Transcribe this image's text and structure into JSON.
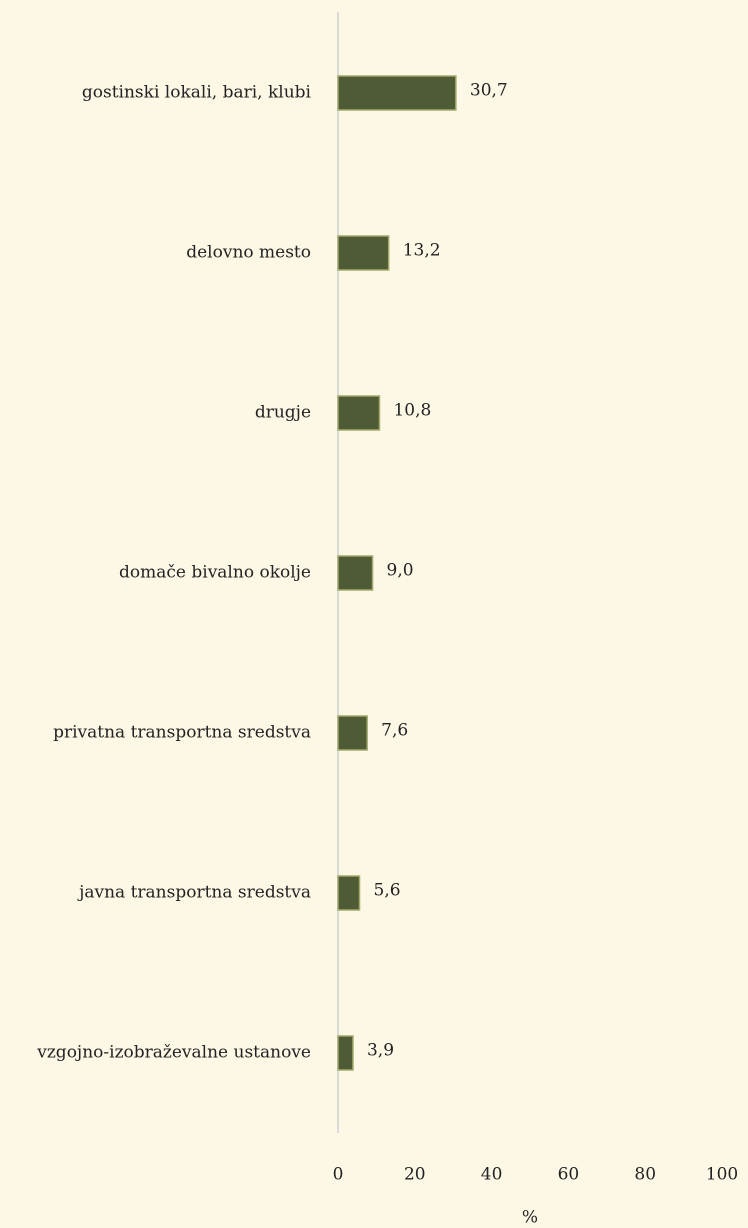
{
  "chart_data": {
    "type": "bar",
    "orientation": "horizontal",
    "categories": [
      "gostinski lokali, bari, klubi",
      "delovno mesto",
      "drugje",
      "domače bivalno okolje",
      "privatna transportna sredstva",
      "javna transportna sredstva",
      "vzgojno-izobraževalne ustanove"
    ],
    "values": [
      30.7,
      13.2,
      10.8,
      9.0,
      7.6,
      5.6,
      3.9
    ],
    "value_labels": [
      "30,7",
      "13,2",
      "10,8",
      "9,0",
      "7,6",
      "5,6",
      "3,9"
    ],
    "color": "#4e5b35",
    "xlim": [
      0,
      100
    ],
    "xticks": [
      0,
      20,
      40,
      60,
      80,
      100
    ],
    "xlabel": "%",
    "grid": false
  }
}
